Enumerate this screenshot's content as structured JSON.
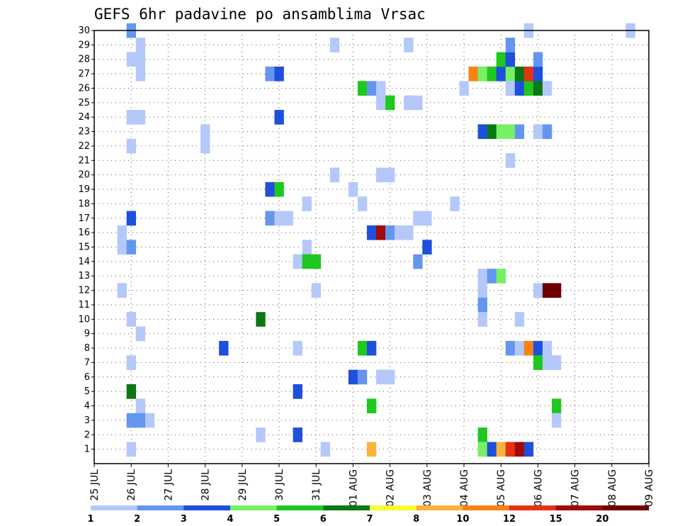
{
  "chart_data": {
    "type": "heatmap",
    "title": "GEFS 6hr padavine po ansamblima Vrsac",
    "x_tick_labels": [
      "25 JUL",
      "26 JUL",
      "27 JUL",
      "28 JUL",
      "29 JUL",
      "30 JUL",
      "31 JUL",
      "01 AUG",
      "02 AUG",
      "03 AUG",
      "04 AUG",
      "05 AUG",
      "06 AUG",
      "07 AUG",
      "08 AUG",
      "09 AUG"
    ],
    "y_tick_labels": [
      "1",
      "2",
      "3",
      "4",
      "5",
      "6",
      "7",
      "8",
      "9",
      "10",
      "11",
      "12",
      "13",
      "14",
      "15",
      "16",
      "17",
      "18",
      "19",
      "20",
      "21",
      "22",
      "23",
      "24",
      "25",
      "26",
      "27",
      "28",
      "29",
      "30"
    ],
    "xlim_steps": [
      0,
      60
    ],
    "ylim_members": [
      0,
      30
    ],
    "grid": true,
    "colorbar": {
      "placement": "bottom",
      "labels": [
        "1",
        "2",
        "3",
        "4",
        "5",
        "6",
        "7",
        "8",
        "10",
        "12",
        "15",
        "20"
      ],
      "colors": [
        "#b4c8fa",
        "#6496f0",
        "#1e50dc",
        "#78f064",
        "#1ec81e",
        "#0a7814",
        "#fafa32",
        "#fab43c",
        "#fa8214",
        "#e63214",
        "#a00a0a",
        "#6e0000"
      ]
    },
    "cells": [
      [
        4,
        30,
        2
      ],
      [
        4,
        28,
        1
      ],
      [
        4,
        1,
        1
      ],
      [
        47,
        30,
        1
      ],
      [
        58,
        30,
        1
      ],
      [
        5,
        27,
        1
      ],
      [
        5,
        28,
        1
      ],
      [
        5,
        29,
        1
      ],
      [
        4,
        24,
        1
      ],
      [
        5,
        24,
        1
      ],
      [
        12,
        22,
        1
      ],
      [
        12,
        23,
        1
      ],
      [
        4,
        22,
        1
      ],
      [
        4,
        10,
        1
      ],
      [
        4,
        7,
        1
      ],
      [
        5,
        9,
        1
      ],
      [
        5,
        4,
        1
      ],
      [
        6,
        3,
        1
      ],
      [
        5,
        3,
        2
      ],
      [
        4,
        3,
        2
      ],
      [
        4,
        17,
        3
      ],
      [
        4,
        5,
        6
      ],
      [
        3,
        16,
        1
      ],
      [
        3,
        15,
        1
      ],
      [
        3,
        12,
        1
      ],
      [
        4,
        15,
        2
      ],
      [
        14,
        8,
        3
      ],
      [
        18,
        2,
        1
      ],
      [
        26,
        29,
        1
      ],
      [
        19,
        27,
        2
      ],
      [
        20,
        27,
        3
      ],
      [
        29,
        26,
        5
      ],
      [
        30,
        26,
        2
      ],
      [
        31,
        26,
        1
      ],
      [
        31,
        25,
        1
      ],
      [
        32,
        25,
        5
      ],
      [
        28,
        19,
        1
      ],
      [
        26,
        20,
        1
      ],
      [
        34,
        29,
        1
      ],
      [
        34,
        25,
        1
      ],
      [
        35,
        25,
        1
      ],
      [
        40,
        26,
        1
      ],
      [
        20,
        24,
        3
      ],
      [
        19,
        19,
        3
      ],
      [
        20,
        19,
        5
      ],
      [
        31,
        20,
        1
      ],
      [
        32,
        20,
        1
      ],
      [
        23,
        18,
        1
      ],
      [
        29,
        18,
        1
      ],
      [
        39,
        18,
        1
      ],
      [
        19,
        17,
        2
      ],
      [
        20,
        17,
        1
      ],
      [
        21,
        17,
        1
      ],
      [
        35,
        17,
        1
      ],
      [
        36,
        17,
        1
      ],
      [
        30,
        16,
        3
      ],
      [
        31,
        16,
        11
      ],
      [
        32,
        16,
        2
      ],
      [
        33,
        16,
        1
      ],
      [
        34,
        16,
        1
      ],
      [
        23,
        15,
        1
      ],
      [
        36,
        15,
        3
      ],
      [
        22,
        14,
        1
      ],
      [
        23,
        14,
        5
      ],
      [
        24,
        14,
        5
      ],
      [
        35,
        14,
        2
      ],
      [
        24,
        12,
        1
      ],
      [
        18,
        10,
        6
      ],
      [
        29,
        8,
        5
      ],
      [
        30,
        8,
        3
      ],
      [
        28,
        6,
        3
      ],
      [
        29,
        6,
        2
      ],
      [
        31,
        6,
        1
      ],
      [
        32,
        6,
        1
      ],
      [
        22,
        8,
        1
      ],
      [
        22,
        5,
        3
      ],
      [
        30,
        4,
        5
      ],
      [
        25,
        1,
        1
      ],
      [
        30,
        1,
        8
      ],
      [
        22,
        2,
        3
      ],
      [
        41,
        27,
        9
      ],
      [
        42,
        27,
        4
      ],
      [
        43,
        27,
        5
      ],
      [
        44,
        27,
        3
      ],
      [
        45,
        27,
        4
      ],
      [
        44,
        28,
        5
      ],
      [
        45,
        28,
        3
      ],
      [
        45,
        29,
        2
      ],
      [
        45,
        26,
        1
      ],
      [
        46,
        26,
        3
      ],
      [
        47,
        26,
        5
      ],
      [
        48,
        26,
        6
      ],
      [
        49,
        26,
        1
      ],
      [
        46,
        27,
        6
      ],
      [
        47,
        27,
        10
      ],
      [
        48,
        27,
        3
      ],
      [
        48,
        28,
        2
      ],
      [
        42,
        23,
        3
      ],
      [
        43,
        23,
        6
      ],
      [
        44,
        23,
        4
      ],
      [
        45,
        23,
        4
      ],
      [
        46,
        23,
        2
      ],
      [
        48,
        23,
        1
      ],
      [
        49,
        23,
        2
      ],
      [
        45,
        21,
        1
      ],
      [
        42,
        13,
        1
      ],
      [
        42,
        12,
        1
      ],
      [
        42,
        11,
        2
      ],
      [
        42,
        10,
        1
      ],
      [
        43,
        13,
        2
      ],
      [
        44,
        13,
        4
      ],
      [
        46,
        10,
        1
      ],
      [
        48,
        12,
        1
      ],
      [
        49,
        12,
        12
      ],
      [
        50,
        12,
        12
      ],
      [
        45,
        8,
        2
      ],
      [
        46,
        8,
        1
      ],
      [
        47,
        8,
        9
      ],
      [
        48,
        8,
        3
      ],
      [
        49,
        8,
        1
      ],
      [
        48,
        7,
        5
      ],
      [
        49,
        7,
        1
      ],
      [
        50,
        7,
        1
      ],
      [
        50,
        4,
        5
      ],
      [
        50,
        3,
        1
      ],
      [
        42,
        2,
        5
      ],
      [
        42,
        1,
        4
      ],
      [
        43,
        1,
        3
      ],
      [
        44,
        1,
        8
      ],
      [
        45,
        1,
        10
      ],
      [
        46,
        1,
        11
      ],
      [
        47,
        1,
        3
      ]
    ]
  }
}
